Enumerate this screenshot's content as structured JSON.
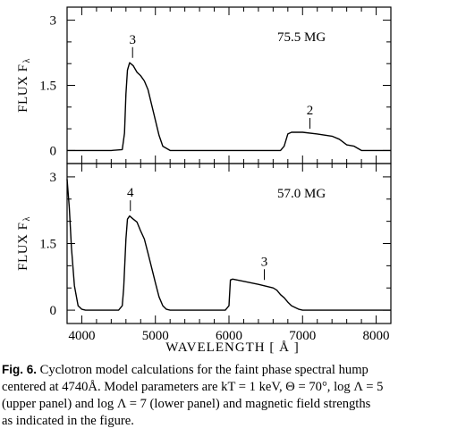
{
  "chart_data": [
    {
      "type": "line",
      "panel": "upper",
      "field_label": "75.5 MG",
      "ylabel": "FLUX F",
      "ylabel_sub": "λ",
      "xlim": [
        3800,
        8200
      ],
      "ylim": [
        -0.3,
        3.3
      ],
      "yticks": [
        0,
        1.5,
        3
      ],
      "ytick_labels": [
        "0",
        "1.5",
        "3"
      ],
      "x": [
        3800,
        4400,
        4550,
        4580,
        4600,
        4620,
        4650,
        4700,
        4750,
        4800,
        4850,
        4900,
        4950,
        5000,
        5050,
        5100,
        5200,
        6000,
        6700,
        6750,
        6800,
        6850,
        7000,
        7200,
        7400,
        7500,
        7600,
        7700,
        7750,
        7800,
        8200
      ],
      "y": [
        0,
        0,
        0.02,
        0.4,
        1.3,
        1.85,
        2.02,
        1.95,
        1.8,
        1.72,
        1.6,
        1.4,
        1.05,
        0.7,
        0.35,
        0.1,
        0,
        0,
        0,
        0.1,
        0.38,
        0.42,
        0.42,
        0.38,
        0.33,
        0.26,
        0.13,
        0.1,
        0.05,
        0,
        0
      ],
      "annotations": [
        {
          "text": "3",
          "x": 4690,
          "y": 2.05
        },
        {
          "text": "2",
          "x": 7100,
          "y": 0.42
        }
      ]
    },
    {
      "type": "line",
      "panel": "lower",
      "field_label": "57.0 MG",
      "ylabel": "FLUX F",
      "ylabel_sub": "λ",
      "xlim": [
        3800,
        8200
      ],
      "ylim": [
        -0.3,
        3.3
      ],
      "xticks": [
        4000,
        5000,
        6000,
        7000,
        8000
      ],
      "xtick_labels": [
        "4000",
        "5000",
        "6000",
        "7000",
        "8000"
      ],
      "yticks": [
        0,
        1.5,
        3
      ],
      "ytick_labels": [
        "0",
        "1.5",
        "3"
      ],
      "xlabel": "WAVELENGTH  [  Å  ]",
      "x": [
        3800,
        3830,
        3860,
        3900,
        3950,
        4000,
        4050,
        4100,
        4500,
        4550,
        4570,
        4600,
        4620,
        4650,
        4700,
        4750,
        4800,
        4850,
        4900,
        4950,
        5000,
        5050,
        5100,
        5150,
        5200,
        5900,
        5950,
        6000,
        6020,
        6050,
        6200,
        6400,
        6600,
        6650,
        6700,
        6750,
        6800,
        6850,
        6900,
        6950,
        7000,
        8200
      ],
      "y": [
        2.95,
        2.3,
        1.4,
        0.55,
        0.1,
        0.02,
        0,
        0,
        0,
        0.1,
        0.5,
        1.6,
        2.05,
        2.12,
        2.05,
        1.98,
        1.78,
        1.6,
        1.28,
        0.95,
        0.62,
        0.3,
        0.1,
        0.02,
        0,
        0,
        0,
        0.1,
        0.68,
        0.7,
        0.65,
        0.58,
        0.5,
        0.45,
        0.35,
        0.28,
        0.18,
        0.1,
        0.06,
        0.02,
        0,
        0
      ],
      "annotations": [
        {
          "text": "4",
          "x": 4660,
          "y": 2.15
        },
        {
          "text": "3",
          "x": 6480,
          "y": 0.6
        }
      ]
    }
  ],
  "caption": {
    "label": "Fig. 6.",
    "lines": [
      "Cyclotron model calculations for the faint phase spectral hump",
      "centered at 4740Å. Model parameters are kT = 1 keV, Θ = 70°, log Λ = 5",
      "(upper panel) and log Λ = 7 (lower panel) and magnetic field strengths",
      "as indicated in the figure."
    ]
  }
}
